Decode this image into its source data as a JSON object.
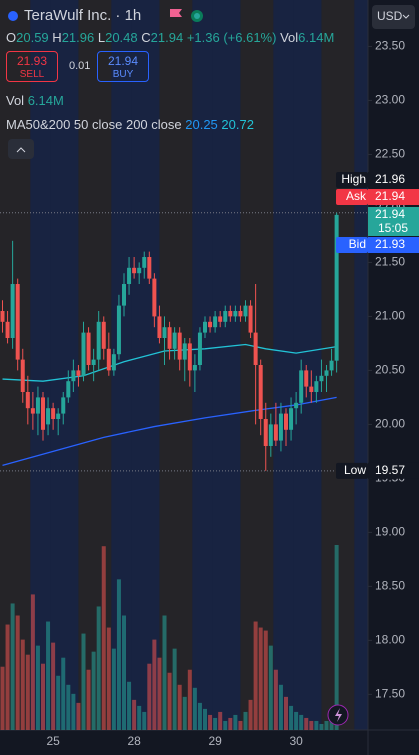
{
  "header": {
    "title": "TeraWulf Inc. · 1h",
    "o_label": "O",
    "open": "20.59",
    "h_label": "H",
    "high": "21.96",
    "l_label": "L",
    "low": "20.48",
    "c_label": "C",
    "close": "21.94",
    "change": "+1.36 (+6.61%)",
    "vol_label": "Vol",
    "vol": "6.14M",
    "sell_price": "21.93",
    "sell_label": "SELL",
    "spread": "0.01",
    "buy_price": "21.94",
    "buy_label": "BUY",
    "volume_label": "Vol",
    "volume_value": "6.14M",
    "indicator": "MA50&200 50 close 200 close",
    "ma_value_1": "20.25",
    "ma_value_2": "20.72",
    "currency": "USD"
  },
  "chart_data": {
    "type": "candlestick",
    "categories": [
      null,
      null,
      null,
      null,
      null,
      null,
      null,
      null,
      null,
      null,
      "25",
      null,
      null,
      null,
      null,
      null,
      null,
      null,
      null,
      null,
      null,
      null,
      null,
      null,
      null,
      null,
      "28",
      null,
      null,
      null,
      null,
      null,
      null,
      null,
      null,
      null,
      null,
      null,
      null,
      null,
      null,
      null,
      "29",
      null,
      null,
      null,
      null,
      null,
      null,
      null,
      null,
      null,
      null,
      null,
      null,
      null,
      null,
      null,
      "30",
      null,
      null,
      null,
      null,
      null,
      null,
      null,
      null
    ],
    "open": [
      21.05,
      20.95,
      20.8,
      21.3,
      20.6,
      20.3,
      20.15,
      20.1,
      20.25,
      20.0,
      20.15,
      20.05,
      20.1,
      20.25,
      20.4,
      20.5,
      20.45,
      20.85,
      20.55,
      20.6,
      20.95,
      20.7,
      20.5,
      20.65,
      21.1,
      21.3,
      21.45,
      21.4,
      21.45,
      21.55,
      21.35,
      21.0,
      20.8,
      20.9,
      20.7,
      20.85,
      20.6,
      20.75,
      20.5,
      20.55,
      20.85,
      20.95,
      20.9,
      21.0,
      20.95,
      21.05,
      21.0,
      21.05,
      21.0,
      21.1,
      20.85,
      20.55,
      20.05,
      19.8,
      20.0,
      19.85,
      20.1,
      19.95,
      20.15,
      20.2,
      20.5,
      20.35,
      20.3,
      20.4,
      20.45,
      20.5,
      20.59
    ],
    "high": [
      21.15,
      21.05,
      21.7,
      21.35,
      20.7,
      20.45,
      20.3,
      20.35,
      20.3,
      20.25,
      20.2,
      20.15,
      20.3,
      20.5,
      20.6,
      20.55,
      20.95,
      20.9,
      20.7,
      21.05,
      21.0,
      20.85,
      20.7,
      21.2,
      21.4,
      21.55,
      21.55,
      21.5,
      21.6,
      21.6,
      21.4,
      21.1,
      21.0,
      20.95,
      20.9,
      20.9,
      20.8,
      20.8,
      20.65,
      20.9,
      21.0,
      21.0,
      21.05,
      21.05,
      21.1,
      21.1,
      21.1,
      21.1,
      21.15,
      21.15,
      21.3,
      20.6,
      20.2,
      20.1,
      20.2,
      20.2,
      20.15,
      20.25,
      20.3,
      20.6,
      20.55,
      20.5,
      20.45,
      20.6,
      20.55,
      20.7,
      21.96
    ],
    "low": [
      20.85,
      20.75,
      20.7,
      20.5,
      20.2,
      20.0,
      19.95,
      19.9,
      19.85,
      19.9,
      19.95,
      19.9,
      20.0,
      20.2,
      20.3,
      20.35,
      20.4,
      20.5,
      20.4,
      20.5,
      20.6,
      20.45,
      20.45,
      20.6,
      21.0,
      21.2,
      21.35,
      21.3,
      21.35,
      21.3,
      20.9,
      20.75,
      20.55,
      20.6,
      20.6,
      20.5,
      20.4,
      20.35,
      20.3,
      20.5,
      20.8,
      20.85,
      20.85,
      20.9,
      20.9,
      20.95,
      20.95,
      20.95,
      20.95,
      20.8,
      20.0,
      19.9,
      19.57,
      19.7,
      19.8,
      19.75,
      19.8,
      19.85,
      20.0,
      20.1,
      20.25,
      20.2,
      20.2,
      20.3,
      20.3,
      20.45,
      20.48
    ],
    "close": [
      20.95,
      20.8,
      21.3,
      20.6,
      20.3,
      20.15,
      20.1,
      20.25,
      19.95,
      20.15,
      20.05,
      20.1,
      20.25,
      20.4,
      20.5,
      20.45,
      20.85,
      20.55,
      20.6,
      20.95,
      20.7,
      20.5,
      20.65,
      21.1,
      21.3,
      21.45,
      21.4,
      21.45,
      21.55,
      21.35,
      21.0,
      20.8,
      20.9,
      20.7,
      20.85,
      20.6,
      20.75,
      20.5,
      20.55,
      20.85,
      20.95,
      20.9,
      21.0,
      20.95,
      21.05,
      21.0,
      21.05,
      21.0,
      21.1,
      20.85,
      20.55,
      20.05,
      19.8,
      20.0,
      19.85,
      20.1,
      19.95,
      20.15,
      20.2,
      20.5,
      20.35,
      20.3,
      20.4,
      20.45,
      20.5,
      20.59,
      21.94
    ],
    "volume": [
      2.1,
      3.5,
      4.2,
      3.8,
      3.0,
      2.5,
      4.5,
      2.8,
      2.2,
      3.6,
      2.9,
      1.8,
      2.4,
      1.5,
      1.2,
      0.9,
      3.2,
      2.0,
      2.6,
      4.1,
      6.1,
      3.4,
      2.7,
      5.0,
      3.8,
      1.6,
      1.0,
      0.8,
      0.6,
      2.2,
      3.0,
      2.4,
      3.8,
      1.9,
      2.7,
      1.5,
      1.1,
      2.0,
      1.4,
      0.9,
      0.7,
      0.5,
      0.4,
      0.6,
      0.3,
      0.4,
      0.5,
      0.3,
      0.6,
      1.0,
      3.6,
      3.4,
      3.3,
      2.8,
      2.0,
      1.5,
      1.1,
      0.8,
      0.6,
      0.5,
      0.4,
      0.3,
      0.3,
      0.2,
      0.3,
      0.4,
      6.14
    ],
    "up_color": "#26a69a",
    "down_color": "#ef5350",
    "moving_averages": [
      {
        "color": "#2962ff",
        "x": [
          0,
          10,
          20,
          30,
          40,
          50,
          58,
          66
        ],
        "values": [
          19.62,
          19.75,
          19.88,
          19.98,
          20.06,
          20.13,
          20.18,
          20.25
        ]
      },
      {
        "color": "#22c3d6",
        "x": [
          0,
          8,
          16,
          24,
          32,
          40,
          48,
          52,
          58,
          66
        ],
        "values": [
          20.42,
          20.4,
          20.45,
          20.58,
          20.68,
          20.7,
          20.74,
          20.7,
          20.66,
          20.72
        ]
      }
    ],
    "ylim": [
      17.17,
      23.93
    ],
    "yticks": [
      {
        "value": 23.5,
        "label": "23.50"
      },
      {
        "value": 23,
        "label": "23.00"
      },
      {
        "value": 22.5,
        "label": "22.50"
      },
      {
        "value": 22,
        "label": "22.00"
      },
      {
        "value": 21.5,
        "label": "21.50"
      },
      {
        "value": 21,
        "label": "21.00"
      },
      {
        "value": 20.5,
        "label": "20.50"
      },
      {
        "value": 20,
        "label": "20.00"
      },
      {
        "value": 19.5,
        "label": "19.50"
      },
      {
        "value": 19,
        "label": "19.00"
      },
      {
        "value": 18.5,
        "label": "18.50"
      },
      {
        "value": 18,
        "label": "18.00"
      },
      {
        "value": 17.5,
        "label": "17.50"
      }
    ],
    "price_labels": [
      {
        "label": "High",
        "value": 21.96,
        "color": "#131722"
      },
      {
        "label": "Ask",
        "value": 21.94,
        "color": "#f23645"
      },
      {
        "label": "Bid",
        "value": 21.93,
        "color": "#2962ff"
      },
      {
        "label": "Low",
        "value": 19.57,
        "color": "#131722"
      }
    ],
    "last_price": 21.94,
    "countdown": "15:05"
  }
}
